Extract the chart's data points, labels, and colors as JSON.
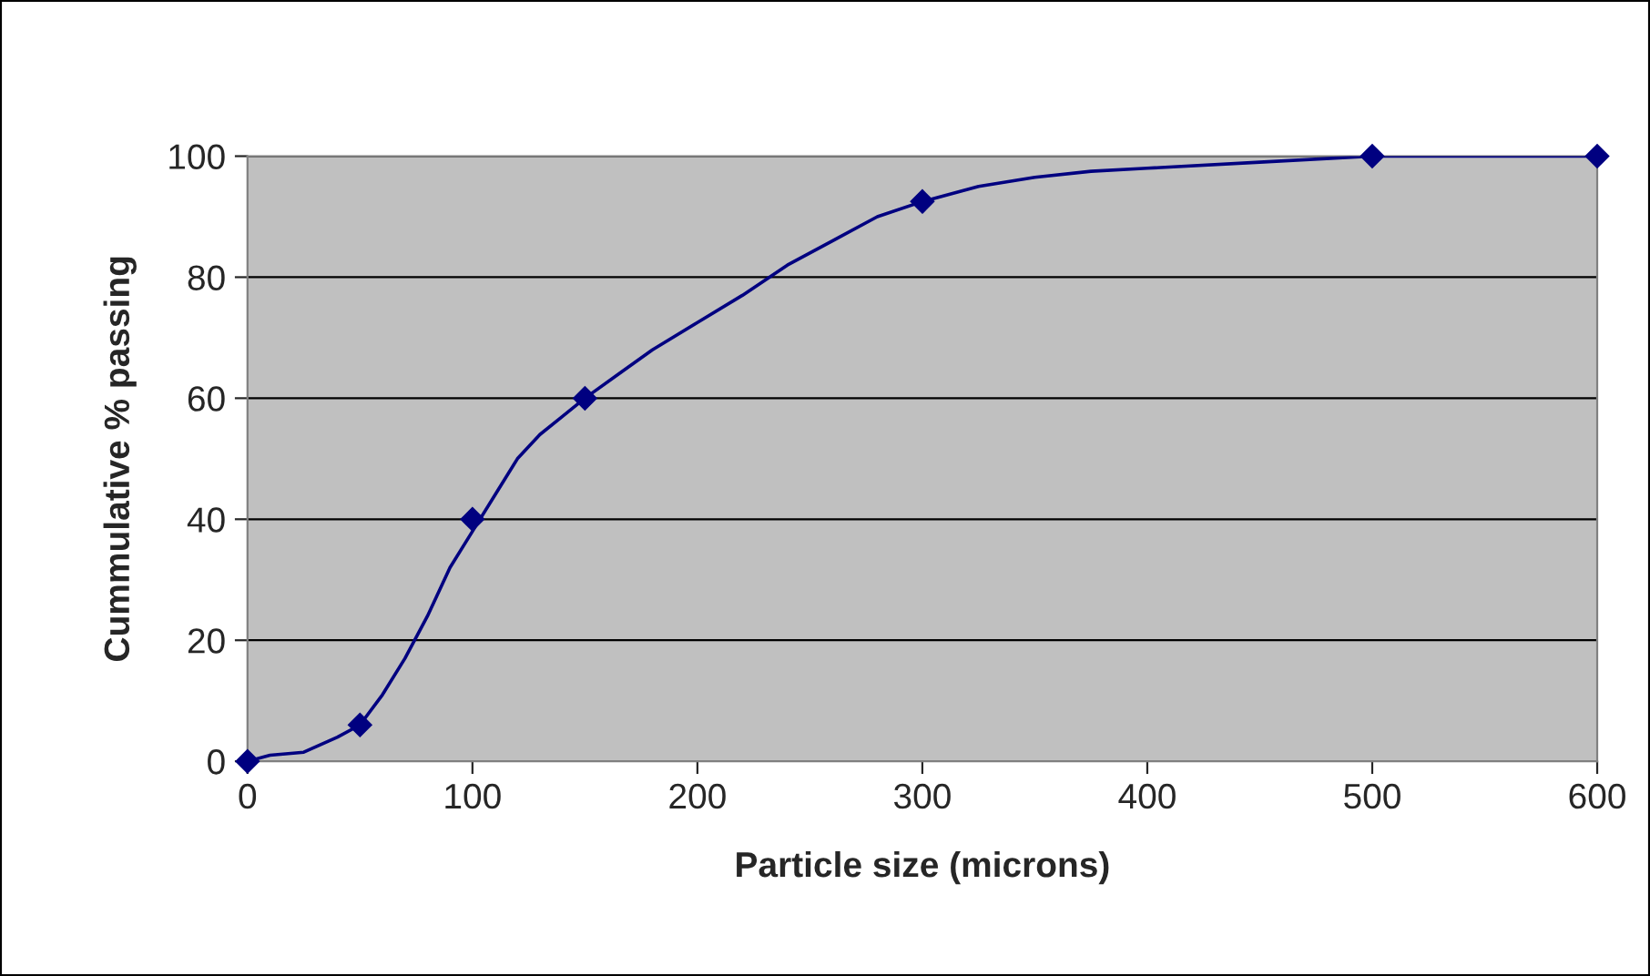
{
  "chart_data": {
    "type": "scatter",
    "xlabel": "Particle size (microns)",
    "ylabel": "Cummulative % passing",
    "series": [
      {
        "type": "line",
        "marker": "none",
        "color": "#000080",
        "x": [
          0,
          10,
          25,
          40,
          50,
          60,
          70,
          80,
          90,
          100,
          110,
          120,
          130,
          140,
          150,
          165,
          180,
          200,
          220,
          240,
          260,
          280,
          300,
          325,
          350,
          375,
          400,
          450,
          500,
          525,
          550,
          575,
          600
        ],
        "values": [
          0,
          1,
          1.5,
          4,
          6,
          11,
          17,
          24,
          32,
          38,
          44,
          50,
          54,
          57,
          60,
          64,
          68,
          72.5,
          77,
          82,
          86,
          90,
          92.5,
          95,
          96.5,
          97.5,
          98,
          99,
          100,
          100,
          100,
          100,
          100
        ]
      },
      {
        "marker": "diamond",
        "color": "#000080",
        "x": [
          0,
          50,
          100,
          150,
          300,
          500,
          600
        ],
        "values": [
          0,
          6,
          40,
          60,
          92.5,
          100,
          100
        ]
      }
    ],
    "xlim": [
      0,
      600
    ],
    "xticks": [
      0,
      100,
      200,
      300,
      400,
      500,
      600
    ],
    "ylim": [
      0,
      100
    ],
    "yticks": [
      0,
      20,
      40,
      60,
      80,
      100
    ],
    "grid": "y",
    "line_style": "solid",
    "legend": false
  }
}
